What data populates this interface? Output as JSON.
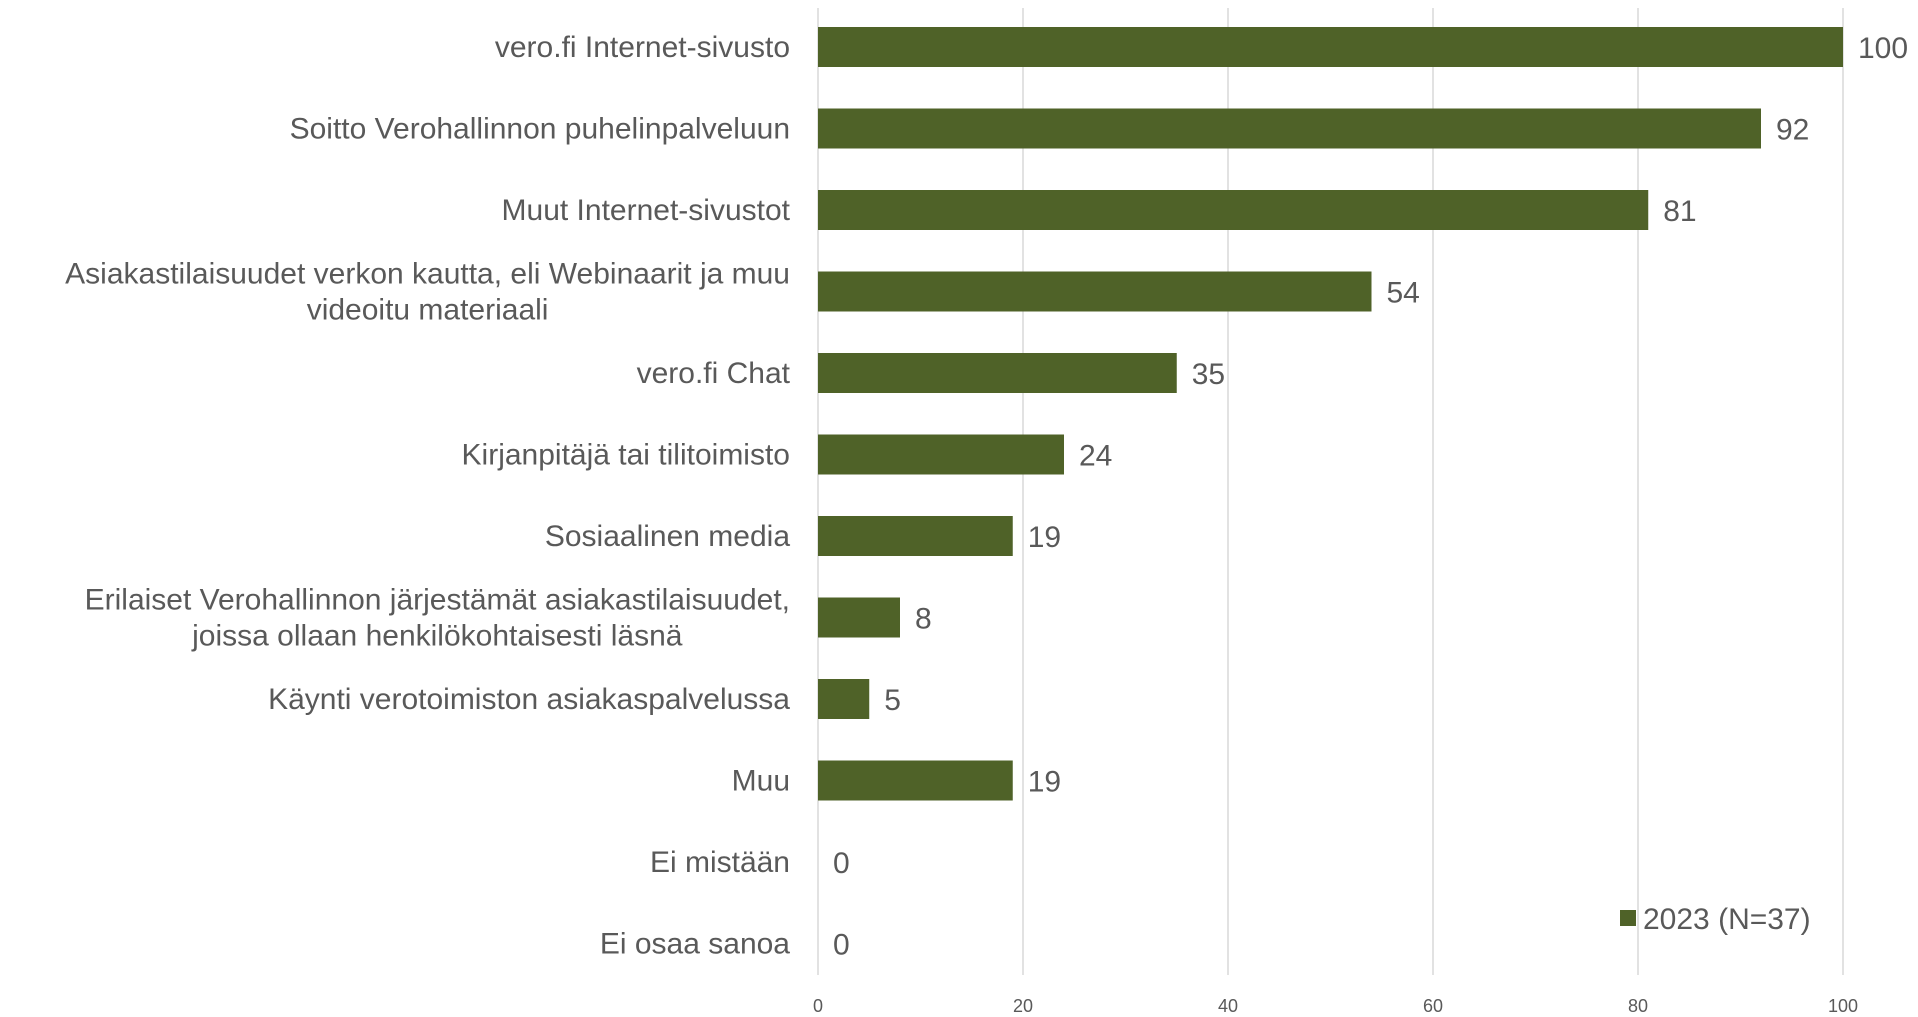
{
  "chart_data": {
    "type": "bar",
    "orientation": "horizontal",
    "categories": [
      "vero.fi Internet-sivusto",
      "Soitto Verohallinnon puhelinpalveluun",
      "Muut Internet-sivustot",
      "Asiakastilaisuudet verkon kautta, eli Webinaarit ja muu videoitu materiaali",
      "vero.fi Chat",
      "Kirjanpitäjä tai tilitoimisto",
      "Sosiaalinen media",
      "Erilaiset Verohallinnon järjestämät asiakastilaisuudet, joissa ollaan henkilökohtaisesti läsnä",
      "Käynti verotoimiston asiakaspalvelussa",
      "Muu",
      "Ei mistään",
      "Ei osaa sanoa"
    ],
    "category_lines": [
      [
        "vero.fi Internet-sivusto"
      ],
      [
        "Soitto Verohallinnon puhelinpalveluun"
      ],
      [
        "Muut Internet-sivustot"
      ],
      [
        "Asiakastilaisuudet verkon kautta, eli Webinaarit ja muu",
        "videoitu materiaali"
      ],
      [
        "vero.fi Chat"
      ],
      [
        "Kirjanpitäjä tai tilitoimisto"
      ],
      [
        "Sosiaalinen media"
      ],
      [
        "Erilaiset Verohallinnon järjestämät asiakastilaisuudet,",
        "joissa ollaan henkilökohtaisesti läsnä"
      ],
      [
        "Käynti verotoimiston asiakaspalvelussa"
      ],
      [
        "Muu"
      ],
      [
        "Ei mistään"
      ],
      [
        "Ei osaa sanoa"
      ]
    ],
    "series": [
      {
        "name": "2023 (N=37)",
        "values": [
          100,
          92,
          81,
          54,
          35,
          24,
          19,
          8,
          5,
          19,
          0,
          0
        ],
        "color": "#4f6228"
      }
    ],
    "xlim": [
      0,
      100
    ],
    "xticks": [
      0,
      20,
      40,
      60,
      80,
      100
    ],
    "grid": true,
    "legend_position": "bottom-right",
    "title": "",
    "xlabel": "",
    "ylabel": ""
  }
}
